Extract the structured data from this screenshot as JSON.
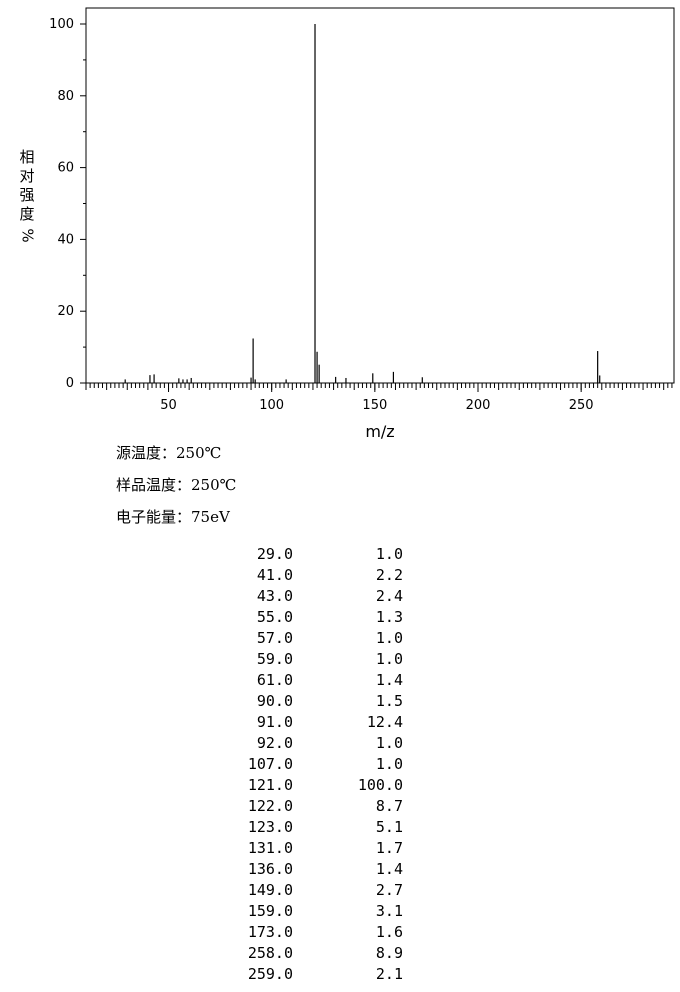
{
  "chart_data": {
    "type": "bar",
    "xlabel": "m/z",
    "ylabel_chars": [
      "相",
      "对",
      "强",
      "度",
      "%"
    ],
    "ylim": [
      0,
      100
    ],
    "xlim": [
      10,
      295
    ],
    "yticks": [
      0,
      20,
      40,
      60,
      80,
      100
    ],
    "xticks": [
      50,
      100,
      150,
      200,
      250
    ],
    "grid": false,
    "peaks": [
      {
        "mz": 29.0,
        "intensity": 1.0
      },
      {
        "mz": 41.0,
        "intensity": 2.2
      },
      {
        "mz": 43.0,
        "intensity": 2.4
      },
      {
        "mz": 55.0,
        "intensity": 1.3
      },
      {
        "mz": 57.0,
        "intensity": 1.0
      },
      {
        "mz": 59.0,
        "intensity": 1.0
      },
      {
        "mz": 61.0,
        "intensity": 1.4
      },
      {
        "mz": 90.0,
        "intensity": 1.5
      },
      {
        "mz": 91.0,
        "intensity": 12.4
      },
      {
        "mz": 92.0,
        "intensity": 1.0
      },
      {
        "mz": 107.0,
        "intensity": 1.0
      },
      {
        "mz": 121.0,
        "intensity": 100.0
      },
      {
        "mz": 122.0,
        "intensity": 8.7
      },
      {
        "mz": 123.0,
        "intensity": 5.1
      },
      {
        "mz": 131.0,
        "intensity": 1.7
      },
      {
        "mz": 136.0,
        "intensity": 1.4
      },
      {
        "mz": 149.0,
        "intensity": 2.7
      },
      {
        "mz": 159.0,
        "intensity": 3.1
      },
      {
        "mz": 173.0,
        "intensity": 1.6
      },
      {
        "mz": 258.0,
        "intensity": 8.9
      },
      {
        "mz": 259.0,
        "intensity": 2.1
      }
    ],
    "peak_table": [
      [
        "29.0",
        "1.0"
      ],
      [
        "41.0",
        "2.2"
      ],
      [
        "43.0",
        "2.4"
      ],
      [
        "55.0",
        "1.3"
      ],
      [
        "57.0",
        "1.0"
      ],
      [
        "59.0",
        "1.0"
      ],
      [
        "61.0",
        "1.4"
      ],
      [
        "90.0",
        "1.5"
      ],
      [
        "91.0",
        "12.4"
      ],
      [
        "92.0",
        "1.0"
      ],
      [
        "107.0",
        "1.0"
      ],
      [
        "121.0",
        "100.0"
      ],
      [
        "122.0",
        "8.7"
      ],
      [
        "123.0",
        "5.1"
      ],
      [
        "131.0",
        "1.7"
      ],
      [
        "136.0",
        "1.4"
      ],
      [
        "149.0",
        "2.7"
      ],
      [
        "159.0",
        "3.1"
      ],
      [
        "173.0",
        "1.6"
      ],
      [
        "258.0",
        "8.9"
      ],
      [
        "259.0",
        "2.1"
      ]
    ]
  },
  "conditions": {
    "source_temp": "源温度：250℃",
    "sample_temp": "样品温度：250℃",
    "electron_energy": "电子能量：75eV"
  }
}
